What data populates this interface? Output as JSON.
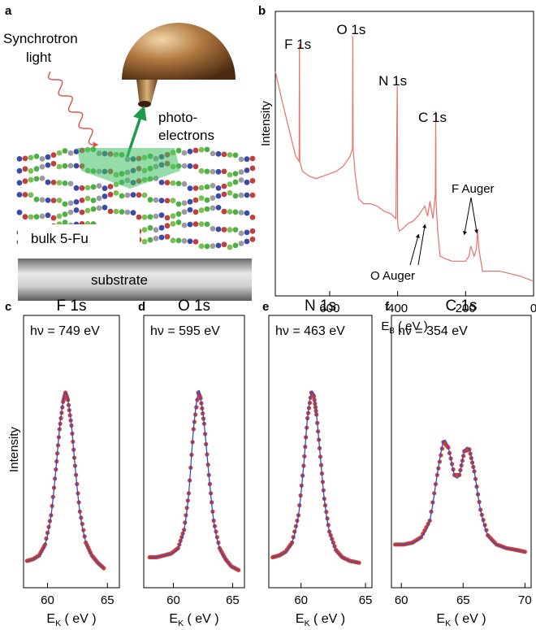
{
  "panel_a": {
    "letter": "a",
    "light_label_1": "Synchrotron",
    "light_label_2": "light",
    "electrons_label_1": "photo-",
    "electrons_label_2": "electrons",
    "bulk_label": "bulk 5-Fu",
    "substrate_label": "substrate",
    "colors": {
      "analyzer": "#9a6a3a",
      "arrow": "#1f9a4a",
      "light": "#e0524a",
      "substrate": "#9a9a9a"
    }
  },
  "chart_data": [
    {
      "letter": "b",
      "type": "line",
      "title": "",
      "xlabel_main": "E",
      "xlabel_sub": "B",
      "xlabel_unit": " ( eV )",
      "ylabel": "Intensity",
      "xlim": [
        760,
        0
      ],
      "x_reversed": true,
      "xticks": [
        600,
        400,
        200,
        0
      ],
      "color": "#e8716a",
      "peaks": [
        {
          "label": "F 1s",
          "x": 689
        },
        {
          "label": "O 1s",
          "x": 532
        },
        {
          "label": "N 1s",
          "x": 400
        },
        {
          "label": "C 1s",
          "x": 288
        }
      ],
      "annotations": [
        "O  Auger",
        "F Auger"
      ],
      "x": [
        760,
        740,
        720,
        700,
        690,
        689,
        688,
        680,
        660,
        640,
        620,
        600,
        580,
        560,
        550,
        540,
        533,
        532,
        531,
        525,
        515,
        500,
        480,
        460,
        440,
        420,
        405,
        401,
        400,
        399,
        395,
        385,
        370,
        355,
        340,
        330,
        320,
        312,
        305,
        296,
        289,
        288,
        287,
        282,
        275,
        260,
        240,
        220,
        200,
        190,
        185,
        175,
        168,
        165,
        160,
        150,
        130,
        100,
        70,
        40,
        20,
        0
      ],
      "y": [
        0.86,
        0.74,
        0.63,
        0.52,
        0.5,
        0.97,
        0.5,
        0.46,
        0.44,
        0.43,
        0.44,
        0.45,
        0.46,
        0.48,
        0.5,
        0.52,
        0.55,
        1.0,
        0.55,
        0.45,
        0.35,
        0.33,
        0.33,
        0.32,
        0.3,
        0.29,
        0.27,
        0.8,
        0.27,
        0.24,
        0.22,
        0.23,
        0.25,
        0.26,
        0.28,
        0.3,
        0.32,
        0.28,
        0.34,
        0.27,
        0.37,
        0.7,
        0.34,
        0.22,
        0.12,
        0.11,
        0.1,
        0.1,
        0.1,
        0.12,
        0.16,
        0.12,
        0.15,
        0.22,
        0.14,
        0.06,
        0.06,
        0.06,
        0.05,
        0.04,
        0.03,
        0.02
      ]
    },
    {
      "letter": "c",
      "type": "line",
      "title": "F 1s",
      "annotation": "hν = 749 eV",
      "xlabel_main": "E",
      "xlabel_sub": "K",
      "xlabel_unit": " ( eV )",
      "ylabel": "Intensity",
      "xlim": [
        58,
        66
      ],
      "xticks": [
        60,
        65
      ],
      "series": [
        {
          "kind": "markers",
          "color": "#d83a2a"
        },
        {
          "kind": "fit",
          "color": "#3050c8"
        }
      ],
      "x": [
        58.3,
        58.8,
        59.3,
        59.8,
        60.3,
        60.7,
        61.0,
        61.3,
        61.5,
        61.7,
        62.0,
        62.3,
        62.7,
        63.2,
        63.7,
        64.2,
        64.7
      ],
      "y": [
        0.08,
        0.09,
        0.11,
        0.17,
        0.33,
        0.58,
        0.8,
        0.95,
        1.0,
        0.96,
        0.82,
        0.6,
        0.35,
        0.18,
        0.11,
        0.07,
        0.04
      ]
    },
    {
      "letter": "d",
      "type": "line",
      "title": "O 1s",
      "annotation": "hν = 595 eV",
      "xlabel_main": "E",
      "xlabel_sub": "K",
      "xlabel_unit": " ( eV )",
      "xlim": [
        57.5,
        66
      ],
      "xticks": [
        60,
        65
      ],
      "series": [
        {
          "kind": "markers",
          "color": "#d83a2a"
        },
        {
          "kind": "fit",
          "color": "#3050c8"
        }
      ],
      "x": [
        58.0,
        58.6,
        59.2,
        59.8,
        60.4,
        60.9,
        61.3,
        61.7,
        62.1,
        62.3,
        62.6,
        63.0,
        63.4,
        63.9,
        64.4,
        64.9,
        65.5
      ],
      "y": [
        0.1,
        0.1,
        0.11,
        0.12,
        0.15,
        0.25,
        0.45,
        0.8,
        1.0,
        0.97,
        0.83,
        0.55,
        0.3,
        0.15,
        0.09,
        0.05,
        0.03
      ]
    },
    {
      "letter": "e",
      "type": "line",
      "title": "N 1s",
      "annotation": "hν = 463 eV",
      "xlabel_main": "E",
      "xlabel_sub": "K",
      "xlabel_unit": " ( eV )",
      "xlim": [
        57.5,
        65.5
      ],
      "xticks": [
        60,
        65
      ],
      "series": [
        {
          "kind": "markers",
          "color": "#d83a2a"
        },
        {
          "kind": "fit",
          "color": "#3050c8"
        }
      ],
      "x": [
        57.8,
        58.3,
        58.8,
        59.3,
        59.8,
        60.2,
        60.5,
        60.8,
        61.0,
        61.2,
        61.5,
        61.8,
        62.2,
        62.7,
        63.2,
        63.8,
        64.5
      ],
      "y": [
        0.1,
        0.11,
        0.13,
        0.18,
        0.33,
        0.6,
        0.86,
        1.0,
        0.98,
        0.88,
        0.65,
        0.42,
        0.24,
        0.14,
        0.1,
        0.08,
        0.07
      ]
    },
    {
      "letter": "f",
      "type": "line",
      "title": "C 1s",
      "annotation": "hν = 354 eV",
      "xlabel_main": "E",
      "xlabel_sub": "K",
      "xlabel_unit": " ( eV )",
      "xlim": [
        59.2,
        70.5
      ],
      "xticks": [
        60,
        65,
        70
      ],
      "series": [
        {
          "kind": "markers",
          "color": "#d83a2a"
        },
        {
          "kind": "fit",
          "color": "#3050c8"
        }
      ],
      "x": [
        59.5,
        60.2,
        60.9,
        61.6,
        62.3,
        62.9,
        63.4,
        63.8,
        64.3,
        64.7,
        65.1,
        65.5,
        65.9,
        66.4,
        67.0,
        67.7,
        68.5,
        69.3,
        70.0
      ],
      "y": [
        0.17,
        0.17,
        0.18,
        0.21,
        0.3,
        0.55,
        0.73,
        0.7,
        0.55,
        0.55,
        0.68,
        0.69,
        0.57,
        0.36,
        0.22,
        0.17,
        0.15,
        0.14,
        0.13
      ]
    }
  ]
}
